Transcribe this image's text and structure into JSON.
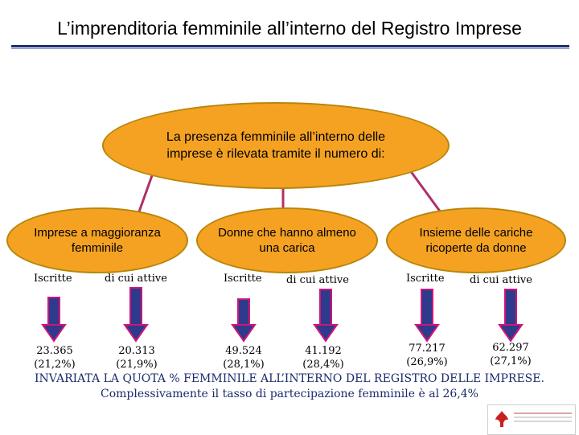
{
  "header": {
    "title": "L’imprenditoria femminile all’interno del Registro Imprese"
  },
  "diagram": {
    "main_node": "La presenza femminile all’interno delle imprese è rilevata tramite il numero di:",
    "nodes": [
      {
        "label": "Imprese a maggioranza femminile",
        "col1": "Iscritte",
        "col2": "di cui attive",
        "val1": "23.365",
        "pct1": "(21,2%)",
        "val2": "20.313",
        "pct2": "(21,9%)"
      },
      {
        "label": "Donne che hanno almeno una carica",
        "col1": "Iscritte",
        "col2": "di cui attive",
        "val1": "49.524",
        "pct1": "(28,1%)",
        "val2": "41.192",
        "pct2": "(28,4%)"
      },
      {
        "label": "Insieme delle cariche ricoperte da donne",
        "col1": "Iscritte",
        "col2": "di cui attive",
        "val1": "77.217",
        "pct1": "(26,9%)",
        "val2": "62.297",
        "pct2": "(27,1%)"
      }
    ]
  },
  "footer": {
    "line1": "INVARIATA LA QUOTA % FEMMINILE ALL’INTERNO DEL REGISTRO DELLE IMPRESE.",
    "line2": "Complessivamente il tasso di partecipazione femminile è al 26,4%"
  },
  "logo": {
    "icon": "chamber-of-commerce-logo"
  },
  "colors": {
    "node_fill": "#f5a223",
    "arrow_fill": "#2e3a8c",
    "arrow_stroke": "#d0157a",
    "link_line": "#b0306a"
  }
}
